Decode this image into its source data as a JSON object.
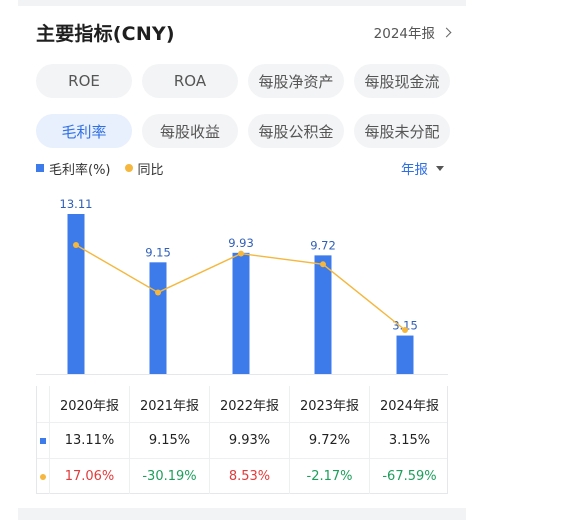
{
  "header": {
    "title": "主要指标(CNY)",
    "period_link": "2024年报"
  },
  "tabs_row1": [
    {
      "label": "ROE",
      "active": false
    },
    {
      "label": "ROA",
      "active": false
    },
    {
      "label": "每股净资产",
      "active": false
    },
    {
      "label": "每股现金流",
      "active": false
    }
  ],
  "tabs_row2": [
    {
      "label": "毛利率",
      "active": true
    },
    {
      "label": "每股收益",
      "active": false
    },
    {
      "label": "每股公积金",
      "active": false
    },
    {
      "label": "每股未分配",
      "active": false
    }
  ],
  "legend": {
    "bar_label": "毛利率(%)",
    "line_label": "同比",
    "period_select": "年报"
  },
  "colors": {
    "bar": "#3d7bea",
    "line": "#f5b73d",
    "active_accent": "#2f6fe4",
    "positive": "#e23b3b",
    "negative": "#1e9e5c"
  },
  "chart_data": {
    "type": "bar",
    "categories": [
      "2020年报",
      "2021年报",
      "2022年报",
      "2023年报",
      "2024年报"
    ],
    "series": [
      {
        "name": "毛利率(%)",
        "type": "bar",
        "values": [
          13.11,
          9.15,
          9.93,
          9.72,
          3.15
        ],
        "labels": [
          "13.11",
          "9.15",
          "9.93",
          "9.72",
          "3.15"
        ]
      },
      {
        "name": "同比",
        "type": "line",
        "values": [
          17.06,
          -30.19,
          8.53,
          -2.17,
          -67.59
        ]
      }
    ]
  },
  "table": {
    "headers": [
      "2020年报",
      "2021年报",
      "2022年报",
      "2023年报",
      "2024年报"
    ],
    "rows": [
      {
        "marker": "bar",
        "values": [
          "13.11%",
          "9.15%",
          "9.93%",
          "9.72%",
          "3.15%"
        ]
      },
      {
        "marker": "line",
        "values": [
          "17.06%",
          "-30.19%",
          "8.53%",
          "-2.17%",
          "-67.59%"
        ],
        "signs": [
          "pos",
          "neg",
          "pos",
          "neg",
          "neg"
        ]
      }
    ]
  }
}
